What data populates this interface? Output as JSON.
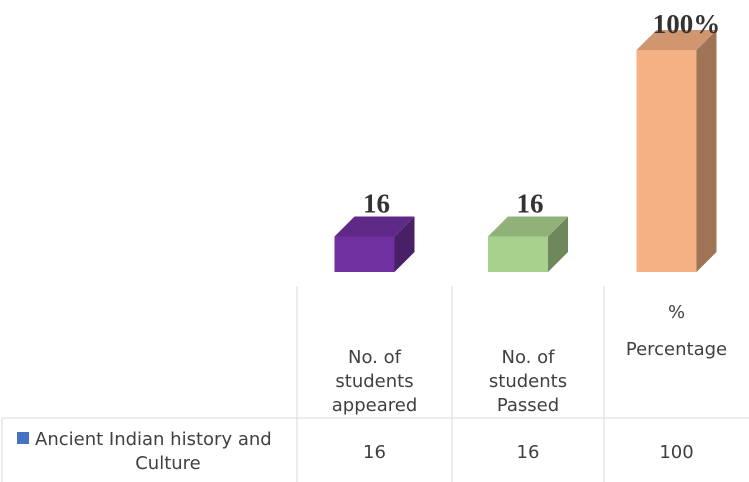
{
  "chart_data": {
    "type": "bar",
    "categories": [
      "No. of students appeared",
      "No. of students Passed",
      "% Percentage"
    ],
    "category_lines": [
      [
        "No. of",
        "students",
        "appeared"
      ],
      [
        "No. of",
        "students",
        "Passed"
      ],
      [
        "%",
        "Percentage"
      ]
    ],
    "series": [
      {
        "name": "Ancient Indian history and Culture",
        "name_lines": [
          "Ancient Indian history and",
          "Culture"
        ],
        "values": [
          16,
          16,
          100
        ],
        "table_values": [
          "16",
          "16",
          "100"
        ]
      }
    ],
    "data_labels": [
      "16",
      "16",
      "100%"
    ],
    "bar_colors": [
      "#7030a0",
      "#a9d18e",
      "#f4b183"
    ],
    "legend_key_color": "#4472c4",
    "data_table": true
  }
}
